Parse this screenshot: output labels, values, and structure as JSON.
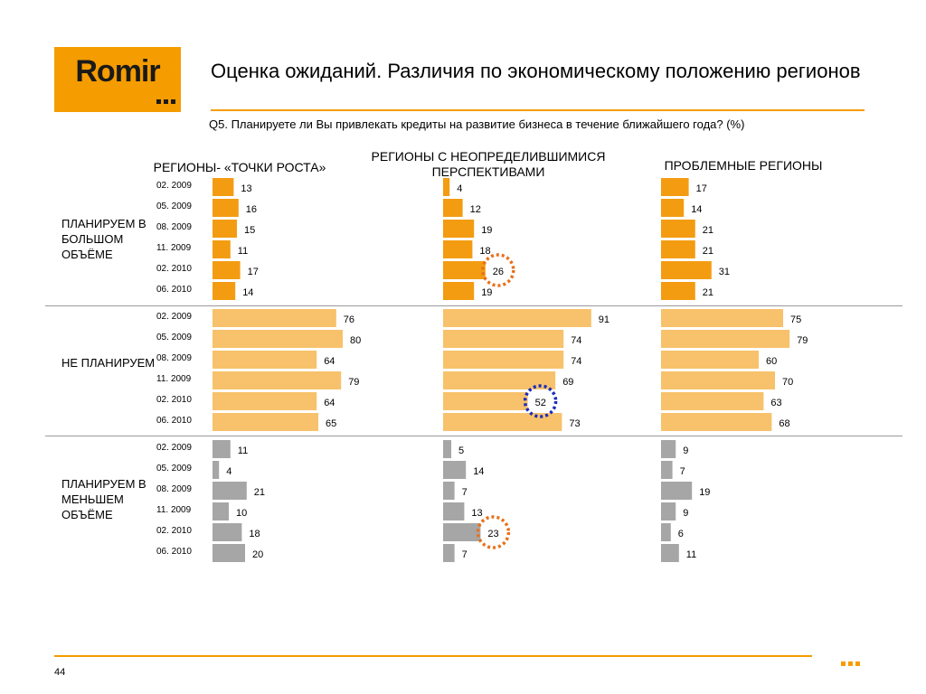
{
  "logo": {
    "text": "Romir"
  },
  "title": "Оценка ожиданий. Различия по экономическому положению регионов",
  "question": "Q5. Планируете ли Вы привлекать кредиты на развитие бизнеса в течение ближайшего года? (%)",
  "columns": [
    "РЕГИОНЫ- «ТОЧКИ РОСТА»",
    "РЕГИОНЫ   С НЕОПРЕДЕЛИВШИМИСЯ ПЕРСПЕКТИВАМИ",
    "ПРОБЛЕМНЫЕ РЕГИОНЫ"
  ],
  "groups": [
    {
      "label": "ПЛАНИРУЕМ В БОЛЬШОМ ОБЪЁМЕ"
    },
    {
      "label": "НЕ ПЛАНИРУЕМ"
    },
    {
      "label": "ПЛАНИРУЕМ В МЕНЬШЕМ ОБЪЁМЕ"
    }
  ],
  "dates": [
    "02. 2009",
    "05. 2009",
    "08. 2009",
    "11. 2009",
    "02. 2010",
    "06. 2010"
  ],
  "colors": {
    "plan_more": "#f39c12",
    "not_plan": "#f7c26b",
    "plan_less": "#a6a6a6",
    "accent": "#f59c00",
    "circle_orange": "#e8701a",
    "circle_blue": "#1a2bbf"
  },
  "page_number": "44",
  "chart_data": {
    "type": "bar",
    "orientation": "horizontal",
    "categories": [
      "02. 2009",
      "05. 2009",
      "08. 2009",
      "11. 2009",
      "02. 2010",
      "06. 2010"
    ],
    "panels": [
      {
        "group": "ПЛАНИРУЕМ В БОЛЬШОМ ОБЪЁМЕ",
        "series": [
          {
            "name": "РЕГИОНЫ- «ТОЧКИ РОСТА»",
            "values": [
              13,
              16,
              15,
              11,
              17,
              14
            ]
          },
          {
            "name": "РЕГИОНЫ   С НЕОПРЕДЕЛИВШИМИСЯ ПЕРСПЕКТИВАМИ",
            "values": [
              4,
              12,
              19,
              18,
              26,
              19
            ]
          },
          {
            "name": "ПРОБЛЕМНЫЕ РЕГИОНЫ",
            "values": [
              17,
              14,
              21,
              21,
              31,
              21
            ]
          }
        ]
      },
      {
        "group": "НЕ ПЛАНИРУЕМ",
        "series": [
          {
            "name": "РЕГИОНЫ- «ТОЧКИ РОСТА»",
            "values": [
              76,
              80,
              64,
              79,
              64,
              65
            ]
          },
          {
            "name": "РЕГИОНЫ   С НЕОПРЕДЕЛИВШИМИСЯ ПЕРСПЕКТИВАМИ",
            "values": [
              91,
              74,
              74,
              69,
              52,
              73
            ]
          },
          {
            "name": "ПРОБЛЕМНЫЕ РЕГИОНЫ",
            "values": [
              75,
              79,
              60,
              70,
              63,
              68
            ]
          }
        ]
      },
      {
        "group": "ПЛАНИРУЕМ В МЕНЬШЕМ ОБЪЁМЕ",
        "series": [
          {
            "name": "РЕГИОНЫ- «ТОЧКИ РОСТА»",
            "values": [
              11,
              4,
              21,
              10,
              18,
              20
            ]
          },
          {
            "name": "РЕГИОНЫ   С НЕОПРЕДЕЛИВШИМИСЯ ПЕРСПЕКТИВАМИ",
            "values": [
              5,
              14,
              7,
              13,
              23,
              7
            ]
          },
          {
            "name": "ПРОБЛЕМНЫЕ РЕГИОНЫ",
            "values": [
              9,
              7,
              19,
              9,
              6,
              11
            ]
          }
        ]
      }
    ],
    "highlights": [
      {
        "group": 0,
        "column": 1,
        "row": 4,
        "color": "orange"
      },
      {
        "group": 1,
        "column": 1,
        "row": 4,
        "color": "blue"
      },
      {
        "group": 2,
        "column": 1,
        "row": 4,
        "color": "orange"
      }
    ]
  }
}
